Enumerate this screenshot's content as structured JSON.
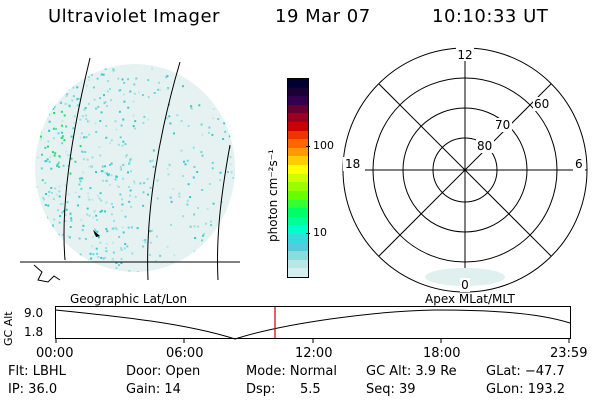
{
  "header": {
    "title": "Ultraviolet Imager",
    "date": "19 Mar 07",
    "time": "10:10:33 UT"
  },
  "colorbar": {
    "axis_label": "photon cm⁻²s⁻¹",
    "ticks": [
      "100",
      "10"
    ],
    "colors": [
      "#000033",
      "#1a0033",
      "#33004d",
      "#660033",
      "#990022",
      "#cc0000",
      "#ee3300",
      "#ff6600",
      "#ff9900",
      "#ffcc00",
      "#ffff00",
      "#ccff00",
      "#99ff00",
      "#66ff00",
      "#33ff33",
      "#00ff66",
      "#00ff99",
      "#00ffcc",
      "#33dddd",
      "#55ccdd",
      "#88dddd",
      "#bbe6e6",
      "#d6eeee"
    ]
  },
  "polar": {
    "mlt_labels": {
      "top": "12",
      "left": "18",
      "right": "6",
      "bottom": "0"
    },
    "lat_labels": [
      "80",
      "70",
      "60"
    ]
  },
  "timeline": {
    "label_left": "Geographic Lat/Lon",
    "label_right": "Apex  MLat/MLT",
    "axis_name": "GC Alt",
    "y_ticks": [
      "9.0",
      "1.8"
    ],
    "x_ticks": [
      "00:00",
      "06:00",
      "12:00",
      "18:00",
      "23:59"
    ],
    "current_time_marker": "10:10",
    "marker_color": "#cc0000"
  },
  "status": {
    "flt": "Flt: LBHL",
    "door": "Door: Open",
    "mode": "Mode: Normal",
    "gcalt": "GC Alt: 3.9 Re",
    "glat": "GLat: −47.7",
    "ip": "IP: 36.0",
    "gain": "Gain: 14",
    "dsp_label": "Dsp:",
    "dsp_value": "5.5",
    "seq": "Seq: 39",
    "glon": "GLon: 193.2"
  }
}
